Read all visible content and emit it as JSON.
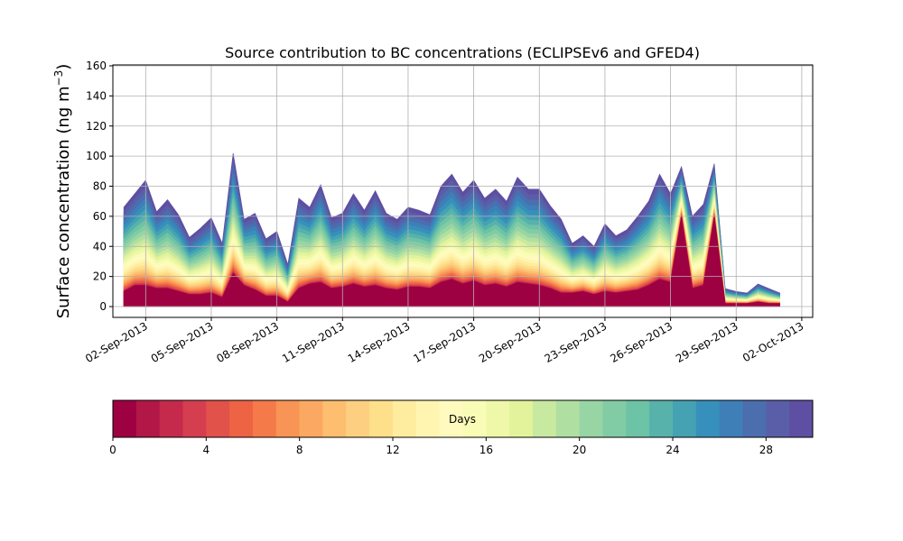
{
  "chart_data": {
    "type": "area",
    "stacked": true,
    "title": "Source contribution to BC concentrations (ECLIPSEv6 and GFED4)",
    "ylabel": "Surface concentration (ng m⁻³)",
    "ylabel_main": "Surface concentration (ng m",
    "ylabel_unit_exp": "−3",
    "ylabel_close": ")",
    "xlabel": "",
    "ylim": [
      0,
      160
    ],
    "yticks": [
      0,
      20,
      40,
      60,
      80,
      100,
      120,
      140,
      160
    ],
    "xlim": [
      "2013-08-31T12:00",
      "2013-10-02T12:00"
    ],
    "xticks": [
      "02-Sep-2013",
      "05-Sep-2013",
      "08-Sep-2013",
      "11-Sep-2013",
      "14-Sep-2013",
      "17-Sep-2013",
      "20-Sep-2013",
      "23-Sep-2013",
      "26-Sep-2013",
      "29-Sep-2013",
      "02-Oct-2013"
    ],
    "grid": true,
    "x": [
      "2013-09-01T00:00",
      "2013-09-01T12:00",
      "2013-09-02T00:00",
      "2013-09-02T12:00",
      "2013-09-03T00:00",
      "2013-09-03T12:00",
      "2013-09-04T00:00",
      "2013-09-04T12:00",
      "2013-09-05T00:00",
      "2013-09-05T12:00",
      "2013-09-06T00:00",
      "2013-09-06T12:00",
      "2013-09-07T00:00",
      "2013-09-07T12:00",
      "2013-09-08T00:00",
      "2013-09-08T12:00",
      "2013-09-09T00:00",
      "2013-09-09T12:00",
      "2013-09-10T00:00",
      "2013-09-10T12:00",
      "2013-09-11T00:00",
      "2013-09-11T12:00",
      "2013-09-12T00:00",
      "2013-09-12T12:00",
      "2013-09-13T00:00",
      "2013-09-13T12:00",
      "2013-09-14T00:00",
      "2013-09-14T12:00",
      "2013-09-15T00:00",
      "2013-09-15T12:00",
      "2013-09-16T00:00",
      "2013-09-16T12:00",
      "2013-09-17T00:00",
      "2013-09-17T12:00",
      "2013-09-18T00:00",
      "2013-09-18T12:00",
      "2013-09-19T00:00",
      "2013-09-19T12:00",
      "2013-09-20T00:00",
      "2013-09-20T12:00",
      "2013-09-21T00:00",
      "2013-09-21T12:00",
      "2013-09-22T00:00",
      "2013-09-22T12:00",
      "2013-09-23T00:00",
      "2013-09-23T12:00",
      "2013-09-24T00:00",
      "2013-09-24T12:00",
      "2013-09-25T00:00",
      "2013-09-25T12:00",
      "2013-09-26T00:00",
      "2013-09-26T12:00",
      "2013-09-27T00:00",
      "2013-09-27T12:00",
      "2013-09-28T00:00",
      "2013-09-28T12:00",
      "2013-09-29T00:00",
      "2013-09-29T12:00",
      "2013-09-30T00:00",
      "2013-09-30T12:00",
      "2013-10-01T00:00"
    ],
    "total": [
      66,
      75,
      84,
      63,
      71,
      61,
      46,
      52,
      59,
      42,
      102,
      58,
      62,
      45,
      50,
      28,
      72,
      66,
      81,
      59,
      62,
      75,
      64,
      77,
      62,
      58,
      66,
      64,
      61,
      80,
      88,
      76,
      84,
      72,
      78,
      70,
      86,
      78,
      78,
      67,
      58,
      42,
      47,
      40,
      55,
      47,
      51,
      60,
      70,
      88,
      75,
      93,
      60,
      68,
      95,
      12,
      10,
      9,
      15,
      12,
      9
    ],
    "fast_component": [
      10,
      14,
      14,
      12,
      12,
      10,
      8,
      8,
      9,
      6,
      22,
      14,
      11,
      7,
      7,
      3,
      12,
      15,
      16,
      12,
      13,
      15,
      13,
      14,
      12,
      11,
      13,
      13,
      12,
      16,
      18,
      15,
      17,
      14,
      15,
      13,
      16,
      15,
      14,
      12,
      9,
      9,
      10,
      8,
      10,
      9,
      10,
      11,
      14,
      18,
      16,
      60,
      12,
      14,
      60,
      2,
      2,
      2,
      3,
      2,
      2
    ],
    "colorbar": {
      "label": "Days",
      "min": 0,
      "max": 30,
      "ticks": [
        0,
        4,
        8,
        12,
        16,
        20,
        24,
        28
      ],
      "colors": [
        "#9e0142",
        "#b11747",
        "#c52a4c",
        "#d53e4f",
        "#e1524a",
        "#ed6344",
        "#f57a49",
        "#f89455",
        "#fba962",
        "#fdbe6f",
        "#fdd081",
        "#fee08b",
        "#feec9f",
        "#fff5b1",
        "#fffbbe",
        "#f9fcb5",
        "#eef8a8",
        "#e2f39b",
        "#c8e9a0",
        "#b0dfa2",
        "#98d5a4",
        "#82cca5",
        "#6cc3a5",
        "#57b2ab",
        "#44a2b3",
        "#3690bb",
        "#3f7fb8",
        "#4b6eaf",
        "#5a5ea8",
        "#5e4fa2"
      ]
    }
  }
}
